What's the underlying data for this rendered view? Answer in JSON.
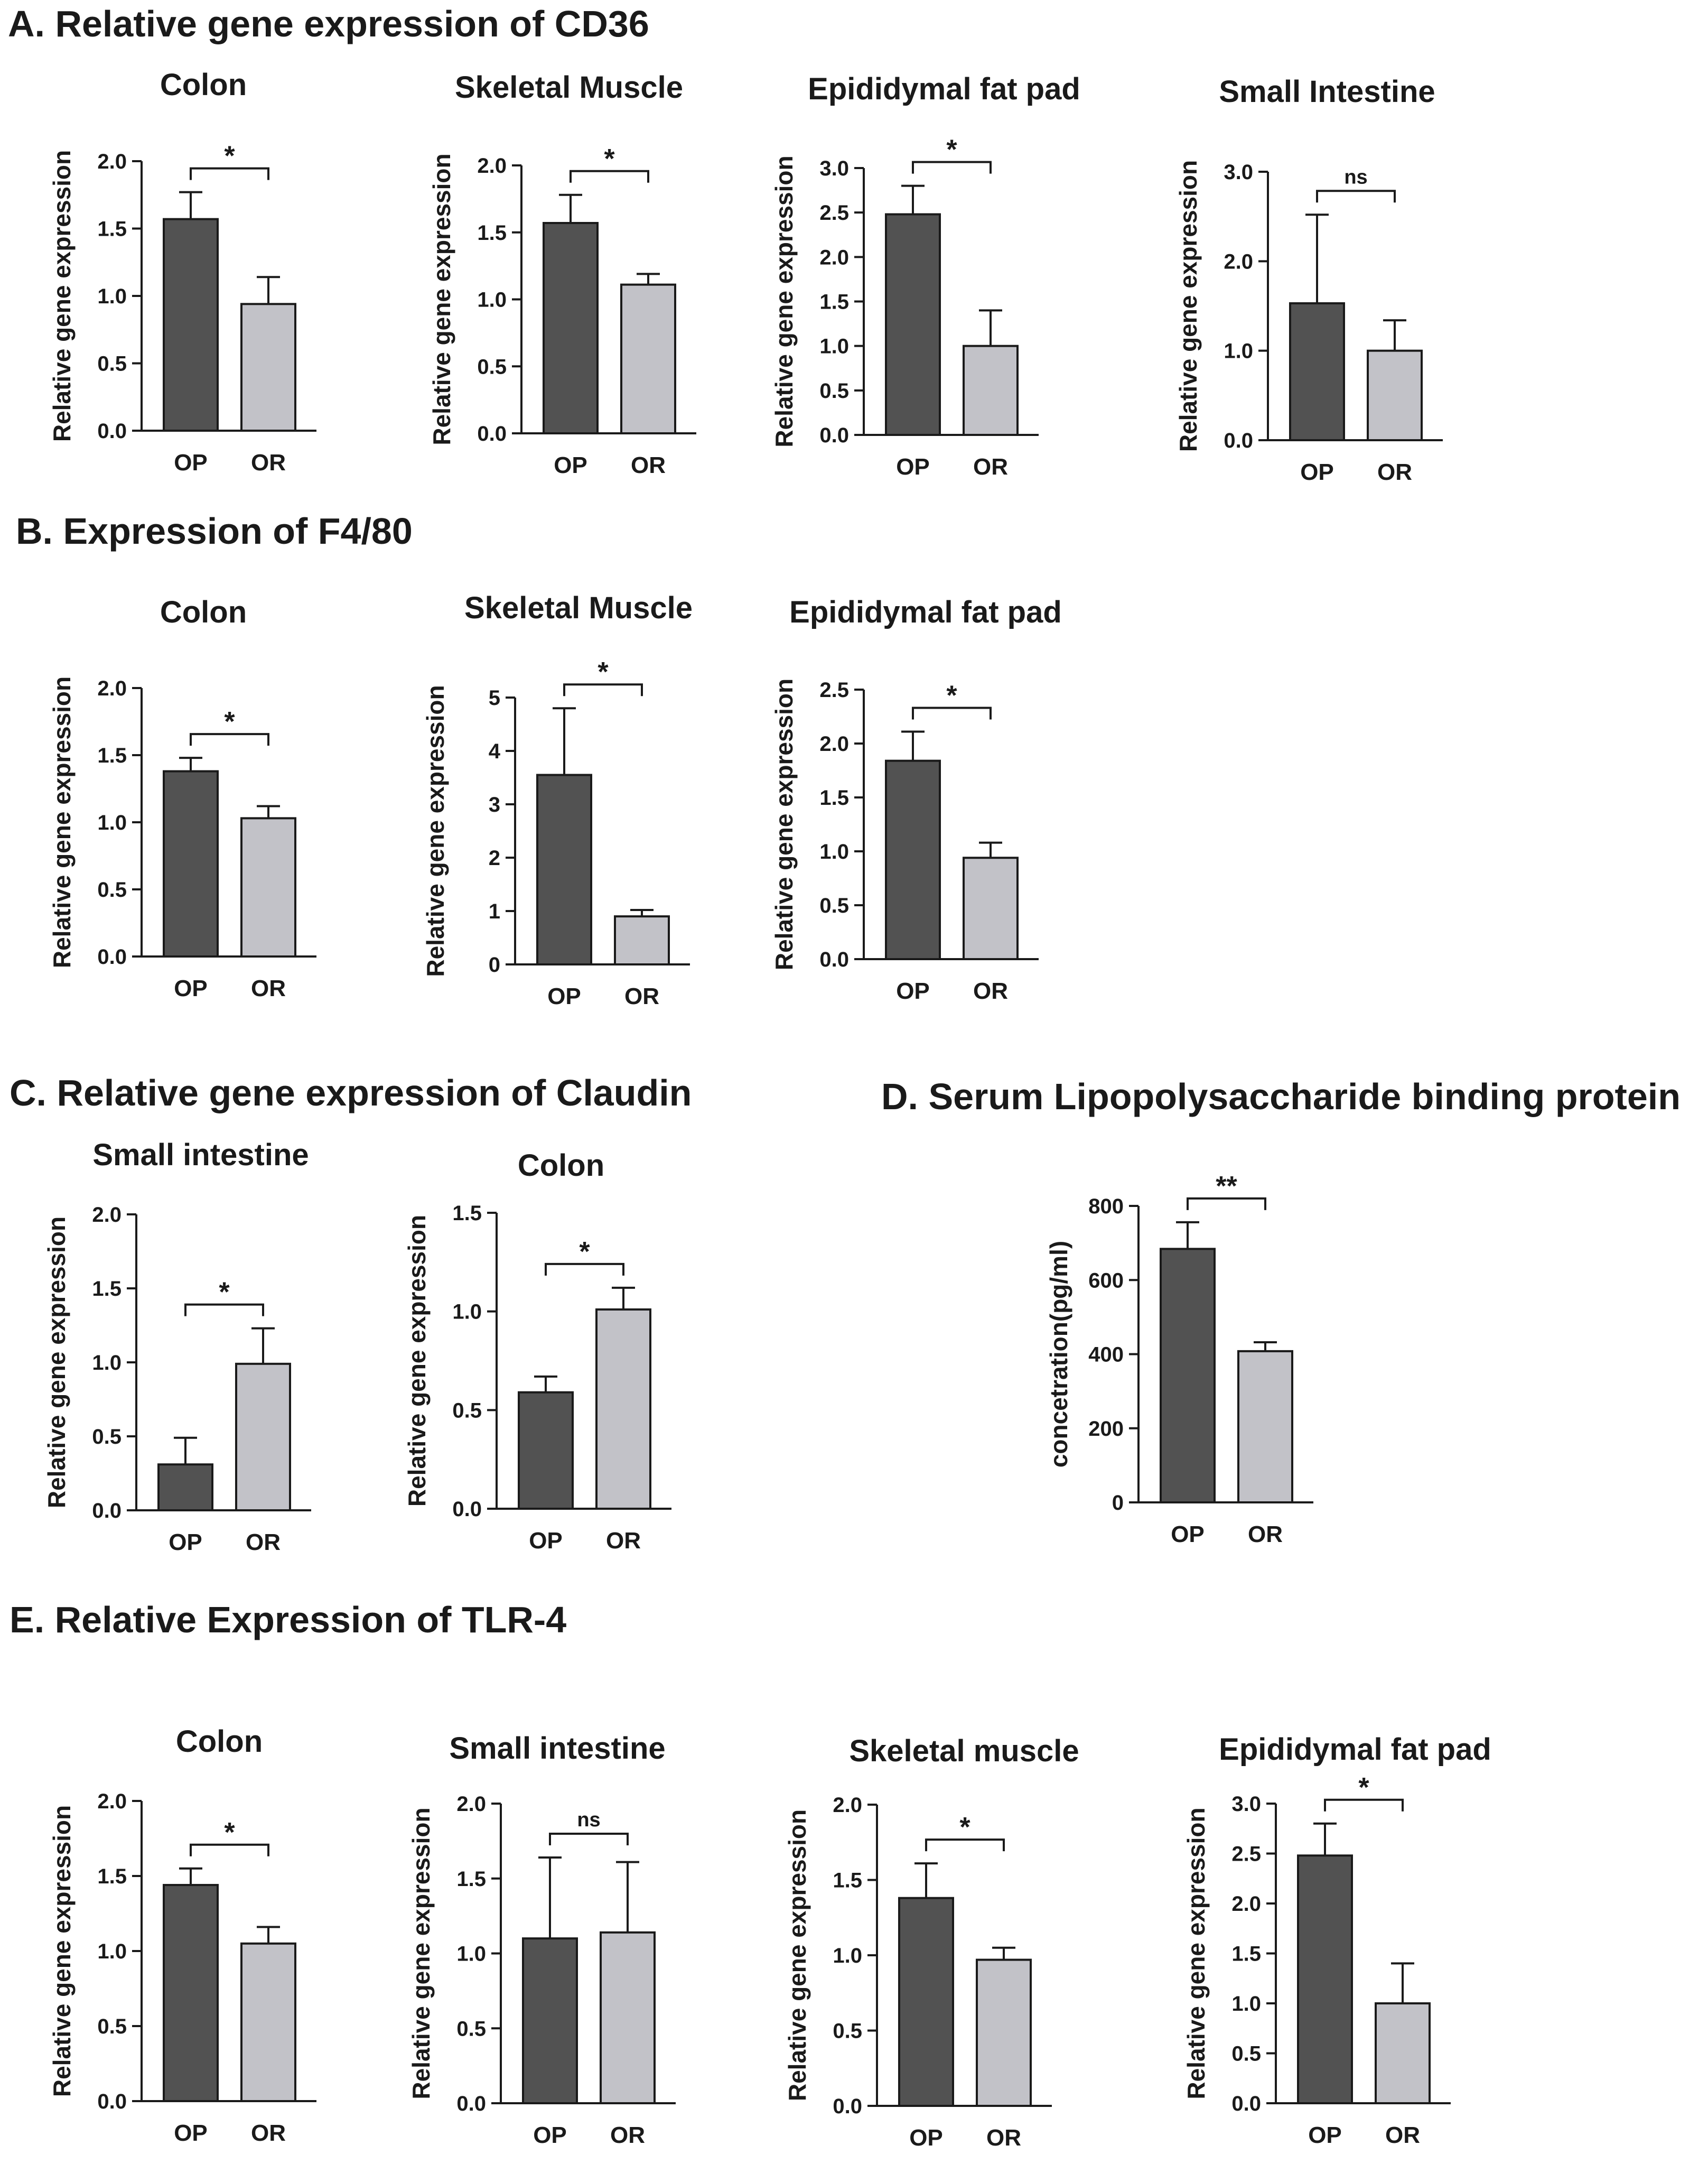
{
  "sections": [
    {
      "title": "A. Relative gene expression of CD36"
    },
    {
      "title": "B. Expression of F4/80"
    },
    {
      "title": "C. Relative gene expression of Claudin"
    },
    {
      "title": "D. Serum Lipopolysaccharide binding protein"
    },
    {
      "title": "E. Relative Expression of TLR-4"
    }
  ],
  "colors": {
    "OP": "#525252",
    "OR": "#c2c2c8",
    "outline": "#1a1a1a"
  },
  "chart_data": [
    {
      "type": "bar",
      "title": "Colon",
      "ylabel": "Relative gene expression",
      "categories": [
        "OP",
        "OR"
      ],
      "values": [
        1.57,
        0.94
      ],
      "errors": [
        0.2,
        0.2
      ],
      "ylim": [
        0,
        2.0
      ],
      "yticks": [
        "0.0",
        "0.5",
        "1.0",
        "1.5",
        "2.0"
      ],
      "significance": "*"
    },
    {
      "type": "bar",
      "title": "Skeletal Muscle",
      "ylabel": "Relative gene expression",
      "categories": [
        "OP",
        "OR"
      ],
      "values": [
        1.57,
        1.11
      ],
      "errors": [
        0.21,
        0.08
      ],
      "ylim": [
        0,
        2.0
      ],
      "yticks": [
        "0.0",
        "0.5",
        "1.0",
        "1.5",
        "2.0"
      ],
      "significance": "*"
    },
    {
      "type": "bar",
      "title": "Epididymal fat pad",
      "ylabel": "Relative gene expression",
      "categories": [
        "OP",
        "OR"
      ],
      "values": [
        2.48,
        1.0
      ],
      "errors": [
        0.32,
        0.4
      ],
      "ylim": [
        0,
        3.0
      ],
      "yticks": [
        "0.0",
        "0.5",
        "1.0",
        "1.5",
        "2.0",
        "2.5",
        "3.0"
      ],
      "significance": "*"
    },
    {
      "type": "bar",
      "title": "Small Intestine",
      "ylabel": "Relative gene expression",
      "categories": [
        "OP",
        "OR"
      ],
      "values": [
        1.53,
        1.0
      ],
      "errors": [
        0.99,
        0.34
      ],
      "ylim": [
        0,
        3.0
      ],
      "yticks": [
        "0.0",
        "1.0",
        "2.0",
        "3.0"
      ],
      "significance": "ns"
    },
    {
      "type": "bar",
      "title": "Colon",
      "ylabel": "Relative gene expression",
      "categories": [
        "OP",
        "OR"
      ],
      "values": [
        1.38,
        1.03
      ],
      "errors": [
        0.1,
        0.09
      ],
      "ylim": [
        0,
        2.0
      ],
      "yticks": [
        "0.0",
        "0.5",
        "1.0",
        "1.5",
        "2.0"
      ],
      "significance": "*"
    },
    {
      "type": "bar",
      "title": "Skeletal Muscle",
      "ylabel": "Relative gene expression",
      "categories": [
        "OP",
        "OR"
      ],
      "values": [
        3.55,
        0.9
      ],
      "errors": [
        1.25,
        0.12
      ],
      "ylim": [
        0,
        5
      ],
      "yticks": [
        "0",
        "1",
        "2",
        "3",
        "4",
        "5"
      ],
      "significance": "*"
    },
    {
      "type": "bar",
      "title": "Epididymal fat pad",
      "ylabel": "Relative gene expression",
      "categories": [
        "OP",
        "OR"
      ],
      "values": [
        1.84,
        0.94
      ],
      "errors": [
        0.27,
        0.14
      ],
      "ylim": [
        0,
        2.5
      ],
      "yticks": [
        "0.0",
        "0.5",
        "1.0",
        "1.5",
        "2.0",
        "2.5"
      ],
      "significance": "*"
    },
    {
      "type": "bar",
      "title": "Small intestine",
      "ylabel": "Relative gene expression",
      "categories": [
        "OP",
        "OR"
      ],
      "values": [
        0.31,
        0.99
      ],
      "errors": [
        0.18,
        0.24
      ],
      "ylim": [
        0,
        2.0
      ],
      "yticks": [
        "0.0",
        "0.5",
        "1.0",
        "1.5",
        "2.0"
      ],
      "significance": "*"
    },
    {
      "type": "bar",
      "title": "Colon",
      "ylabel": "Relative gene expression",
      "categories": [
        "OP",
        "OR"
      ],
      "values": [
        0.59,
        1.01
      ],
      "errors": [
        0.08,
        0.11
      ],
      "ylim": [
        0,
        1.5
      ],
      "yticks": [
        "0.0",
        "0.5",
        "1.0",
        "1.5"
      ],
      "significance": "*"
    },
    {
      "type": "bar",
      "title": "",
      "ylabel": "concetration(pg/ml)",
      "categories": [
        "OP",
        "OR"
      ],
      "values": [
        684,
        408
      ],
      "errors": [
        72,
        24
      ],
      "ylim": [
        0,
        800
      ],
      "yticks": [
        "0",
        "200",
        "400",
        "600",
        "800"
      ],
      "significance": "**"
    },
    {
      "type": "bar",
      "title": "Colon",
      "ylabel": "Relative gene expression",
      "categories": [
        "OP",
        "OR"
      ],
      "values": [
        1.44,
        1.05
      ],
      "errors": [
        0.11,
        0.11
      ],
      "ylim": [
        0,
        2.0
      ],
      "yticks": [
        "0.0",
        "0.5",
        "1.0",
        "1.5",
        "2.0"
      ],
      "significance": "*"
    },
    {
      "type": "bar",
      "title": "Small intestine",
      "ylabel": "Relative gene expression",
      "categories": [
        "OP",
        "OR"
      ],
      "values": [
        1.1,
        1.14
      ],
      "errors": [
        0.54,
        0.47
      ],
      "ylim": [
        0,
        2.0
      ],
      "yticks": [
        "0.0",
        "0.5",
        "1.0",
        "1.5",
        "2.0"
      ],
      "significance": "ns"
    },
    {
      "type": "bar",
      "title": "Skeletal muscle",
      "ylabel": "Relative gene expression",
      "categories": [
        "OP",
        "OR"
      ],
      "values": [
        1.38,
        0.97
      ],
      "errors": [
        0.23,
        0.08
      ],
      "ylim": [
        0,
        2.0
      ],
      "yticks": [
        "0.0",
        "0.5",
        "1.0",
        "1.5",
        "2.0"
      ],
      "significance": "*"
    },
    {
      "type": "bar",
      "title": "Epididymal fat pad",
      "ylabel": "Relative gene expression",
      "categories": [
        "OP",
        "OR"
      ],
      "values": [
        2.48,
        1.0
      ],
      "errors": [
        0.32,
        0.4
      ],
      "ylim": [
        0,
        3.0
      ],
      "yticks": [
        "0.0",
        "0.5",
        "1.0",
        "1.5",
        "2.0",
        "2.5",
        "3.0"
      ],
      "significance": "*"
    }
  ]
}
